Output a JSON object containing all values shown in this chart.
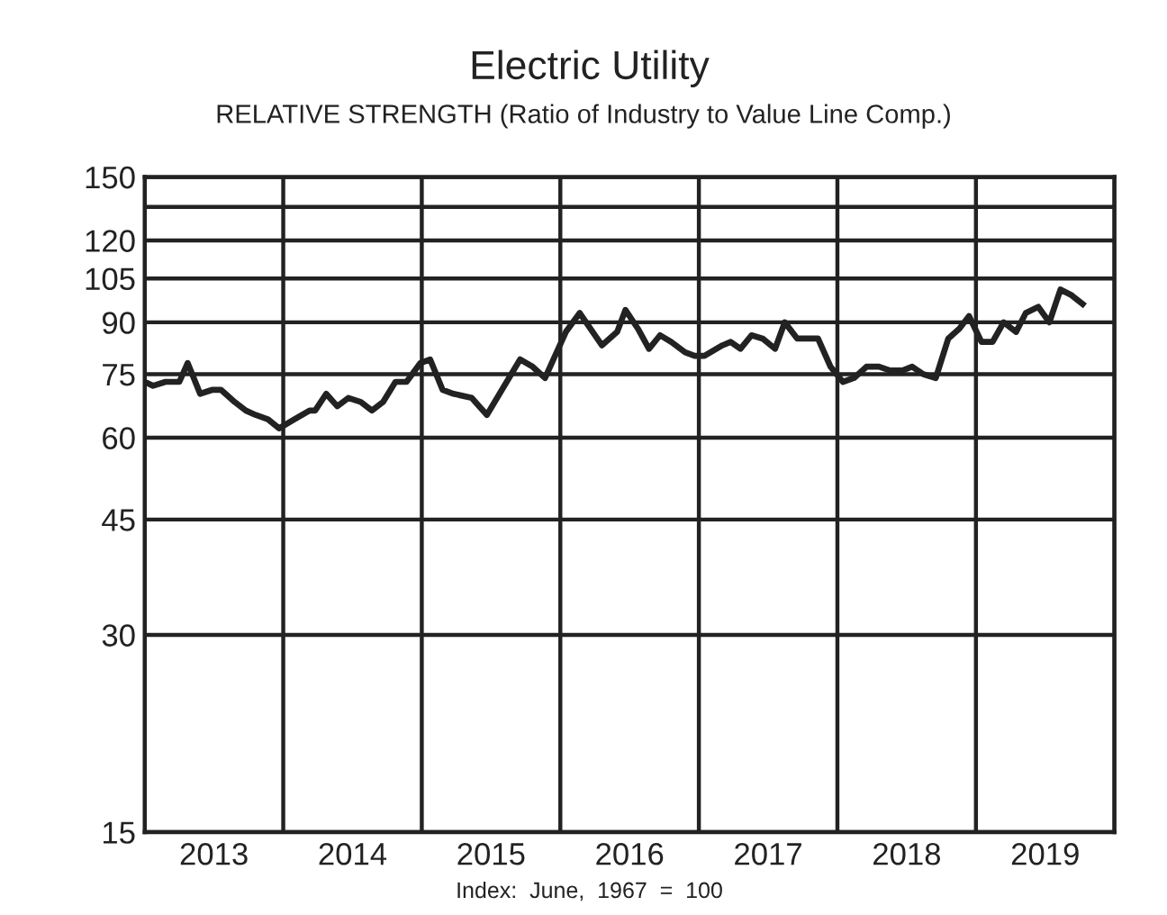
{
  "chart_data": {
    "type": "line",
    "title": "Electric Utility",
    "subtitle": "RELATIVE STRENGTH (Ratio of Industry to Value Line Comp.)",
    "annotations": [
      "Index:  June,  1967  =  100"
    ],
    "log": true,
    "grid": true,
    "marker": "none",
    "line_style": "solid",
    "xlim": [
      2013,
      2020
    ],
    "xticks": [
      {
        "value": 2013,
        "label": null
      },
      {
        "value": 2014,
        "label": null
      },
      {
        "value": 2015,
        "label": null
      },
      {
        "value": 2016,
        "label": null
      },
      {
        "value": 2017,
        "label": null
      },
      {
        "value": 2018,
        "label": null
      },
      {
        "value": 2019,
        "label": null
      },
      {
        "value": 2020,
        "label": null
      },
      {
        "value": 2013.5,
        "label": "2013"
      },
      {
        "value": 2014.5,
        "label": "2014"
      },
      {
        "value": 2015.5,
        "label": "2015"
      },
      {
        "value": 2016.5,
        "label": "2016"
      },
      {
        "value": 2017.5,
        "label": "2017"
      },
      {
        "value": 2018.5,
        "label": "2018"
      },
      {
        "value": 2019.5,
        "label": "2019"
      }
    ],
    "ylim": [
      15,
      150
    ],
    "yticks": [
      15,
      30,
      45,
      60,
      75,
      90,
      105,
      120,
      {
        "value": 135,
        "label": null
      },
      150
    ],
    "x": [
      2013.0,
      2013.06,
      2013.15,
      2013.25,
      2013.31,
      2013.4,
      2013.49,
      2013.55,
      2013.65,
      2013.73,
      2013.8,
      2013.89,
      2013.97,
      2014.08,
      2014.19,
      2014.23,
      2014.31,
      2014.39,
      2014.47,
      2014.56,
      2014.64,
      2014.72,
      2014.81,
      2014.89,
      2014.99,
      2015.06,
      2015.15,
      2015.23,
      2015.36,
      2015.47,
      2015.71,
      2015.8,
      2015.89,
      2015.95,
      2016.04,
      2016.14,
      2016.3,
      2016.41,
      2016.47,
      2016.56,
      2016.64,
      2016.72,
      2016.8,
      2016.9,
      2016.97,
      2017.04,
      2017.17,
      2017.23,
      2017.3,
      2017.38,
      2017.46,
      2017.55,
      2017.62,
      2017.71,
      2017.8,
      2017.86,
      2017.95,
      2018.04,
      2018.12,
      2018.21,
      2018.3,
      2018.38,
      2018.47,
      2018.54,
      2018.62,
      2018.71,
      2018.8,
      2018.88,
      2018.95,
      2019.04,
      2019.12,
      2019.2,
      2019.29,
      2019.36,
      2019.45,
      2019.53,
      2019.61,
      2019.69,
      2019.77
    ],
    "series": [
      {
        "color": "#222222",
        "values": [
          73,
          72,
          73,
          73,
          78,
          70,
          71,
          71,
          68,
          66,
          65,
          64,
          62,
          64,
          66,
          66,
          70,
          67,
          69,
          68,
          66,
          68,
          73,
          73,
          78,
          79,
          71,
          70,
          69,
          65,
          79,
          77,
          74,
          79,
          87,
          93,
          83,
          87,
          94,
          88,
          82,
          86,
          84,
          81,
          80,
          80,
          83,
          84,
          82,
          86,
          85,
          82,
          90,
          85,
          85,
          85,
          77,
          73,
          74,
          77,
          77,
          76,
          76,
          77,
          75,
          74,
          85,
          88,
          92,
          84,
          84,
          90,
          87,
          93,
          95,
          90,
          101,
          99,
          96
        ]
      }
    ]
  }
}
